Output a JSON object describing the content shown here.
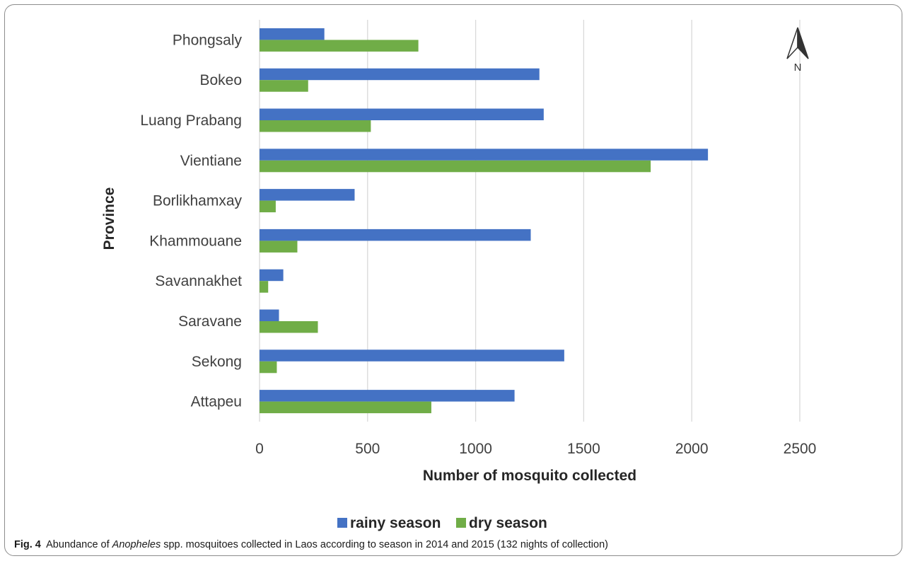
{
  "chart_data": {
    "type": "bar",
    "orientation": "horizontal",
    "categories": [
      "Phongsaly",
      "Bokeo",
      "Luang Prabang",
      "Vientiane",
      "Borlikhamxay",
      "Khammouane",
      "Savannakhet",
      "Saravane",
      "Sekong",
      "Attapeu"
    ],
    "series": [
      {
        "name": "rainy season",
        "color": "#4472c4",
        "values": [
          300,
          1295,
          1315,
          2075,
          440,
          1255,
          110,
          90,
          1410,
          1180
        ]
      },
      {
        "name": "dry season",
        "color": "#70ad47",
        "values": [
          735,
          225,
          515,
          1810,
          75,
          175,
          40,
          270,
          80,
          795
        ]
      }
    ],
    "xlabel": "Number of mosquito collected",
    "ylabel": "Province",
    "xlim": [
      0,
      2500
    ],
    "xticks": [
      "0",
      "500",
      "1000",
      "1500",
      "2000",
      "2500"
    ],
    "grid": true,
    "legend_position": "bottom",
    "north_arrow_label": "N"
  },
  "caption": {
    "label": "Fig. 4",
    "text_before": "Abundance of ",
    "text_italic": "Anopheles",
    "text_after": " spp. mosquitoes collected in Laos according to season in 2014 and 2015 (132 nights of collection)"
  }
}
